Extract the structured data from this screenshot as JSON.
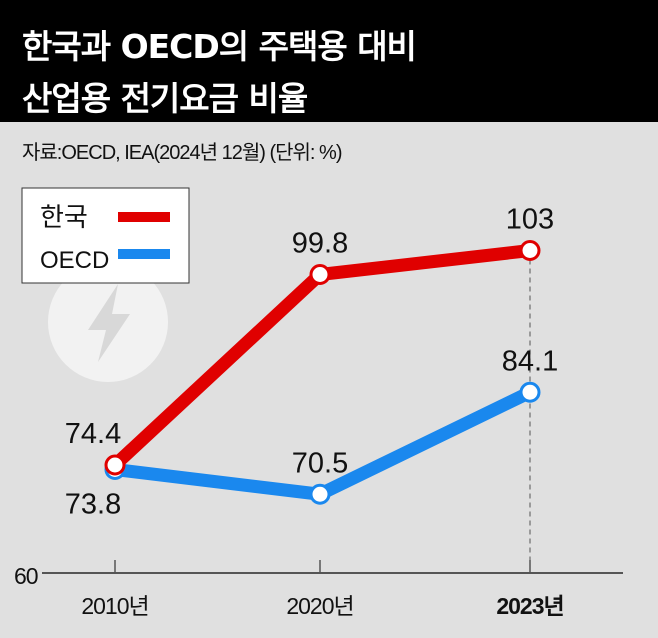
{
  "header": {
    "title_line1": "한국과 OECD의 주택용 대비",
    "title_line2": "산업용 전기요금 비율"
  },
  "source": "자료:OECD, IEA(2024년 12월)  (단위: %)",
  "chart_data": {
    "type": "line",
    "title": "한국과 OECD의 주택용 대비 산업용 전기요금 비율",
    "categories": [
      "2010년",
      "2020년",
      "2023년"
    ],
    "series": [
      {
        "name": "한국",
        "color": "#e00000",
        "values": [
          74.4,
          99.8,
          103
        ],
        "labels": [
          "74.4",
          "99.8",
          "103"
        ]
      },
      {
        "name": "OECD",
        "color": "#1a88ee",
        "values": [
          73.8,
          70.5,
          84.1
        ],
        "labels": [
          "73.8",
          "70.5",
          "84.1"
        ]
      }
    ],
    "y_baseline_label": "60",
    "ylim": [
      60,
      110
    ],
    "legend": "top-left",
    "grid": false
  }
}
